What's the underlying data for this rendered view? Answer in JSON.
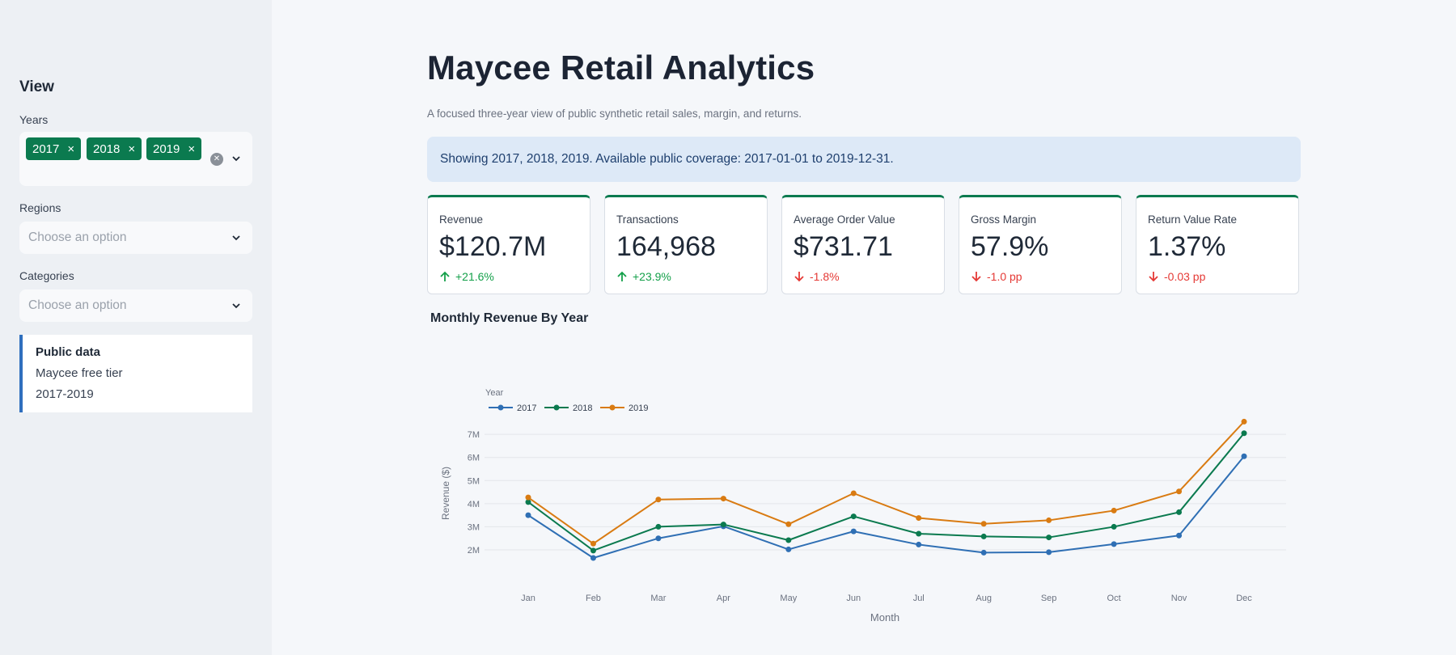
{
  "sidebar": {
    "heading": "View",
    "years_label": "Years",
    "years_selected": [
      "2017",
      "2018",
      "2019"
    ],
    "tag_remove": "×",
    "regions_label": "Regions",
    "regions_placeholder": "Choose an option",
    "categories_label": "Categories",
    "categories_placeholder": "Choose an option",
    "info": {
      "title": "Public data",
      "line1": "Maycee free tier",
      "line2": "2017-2019"
    }
  },
  "main": {
    "title": "Maycee Retail Analytics",
    "subtitle": "A focused three-year view of public synthetic retail sales, margin, and returns.",
    "banner": "Showing 2017, 2018, 2019. Available public coverage: 2017-01-01 to 2019-12-31.",
    "kpis": [
      {
        "label": "Revenue",
        "value": "$120.7M",
        "delta": "+21.6%",
        "direction": "up"
      },
      {
        "label": "Transactions",
        "value": "164,968",
        "delta": "+23.9%",
        "direction": "up"
      },
      {
        "label": "Average Order Value",
        "value": "$731.71",
        "delta": "-1.8%",
        "direction": "down"
      },
      {
        "label": "Gross Margin",
        "value": "57.9%",
        "delta": "-1.0 pp",
        "direction": "down"
      },
      {
        "label": "Return Value Rate",
        "value": "1.37%",
        "delta": "-0.03 pp",
        "direction": "down"
      }
    ],
    "chart_title": "Monthly Revenue By Year"
  },
  "colors": {
    "accent": "#0b7a4f",
    "up": "#14a04a",
    "down": "#e53935",
    "info_border": "#2f6fbe"
  },
  "chart_data": {
    "type": "line",
    "title": "",
    "xlabel": "Month",
    "ylabel": "Revenue ($)",
    "legend_title": "Year",
    "legend_position": "top-left",
    "grid": true,
    "categories": [
      "Jan",
      "Feb",
      "Mar",
      "Apr",
      "May",
      "Jun",
      "Jul",
      "Aug",
      "Sep",
      "Oct",
      "Nov",
      "Dec"
    ],
    "ylim": [
      1300000,
      7600000
    ],
    "yticks": [
      2000000,
      3000000,
      4000000,
      5000000,
      6000000,
      7000000
    ],
    "ytick_labels": [
      "2M",
      "3M",
      "4M",
      "5M",
      "6M",
      "7M"
    ],
    "series": [
      {
        "name": "2017",
        "color": "#2f6fb4",
        "values": [
          3500000,
          1650000,
          2500000,
          3020000,
          2020000,
          2800000,
          2230000,
          1880000,
          1900000,
          2250000,
          2620000,
          6050000
        ]
      },
      {
        "name": "2018",
        "color": "#0b7a4f",
        "values": [
          4070000,
          1970000,
          3000000,
          3100000,
          2420000,
          3450000,
          2700000,
          2580000,
          2540000,
          3000000,
          3630000,
          7050000
        ]
      },
      {
        "name": "2019",
        "color": "#d97b12",
        "values": [
          4270000,
          2270000,
          4180000,
          4220000,
          3110000,
          4450000,
          3380000,
          3130000,
          3280000,
          3700000,
          4530000,
          7550000
        ]
      }
    ]
  }
}
